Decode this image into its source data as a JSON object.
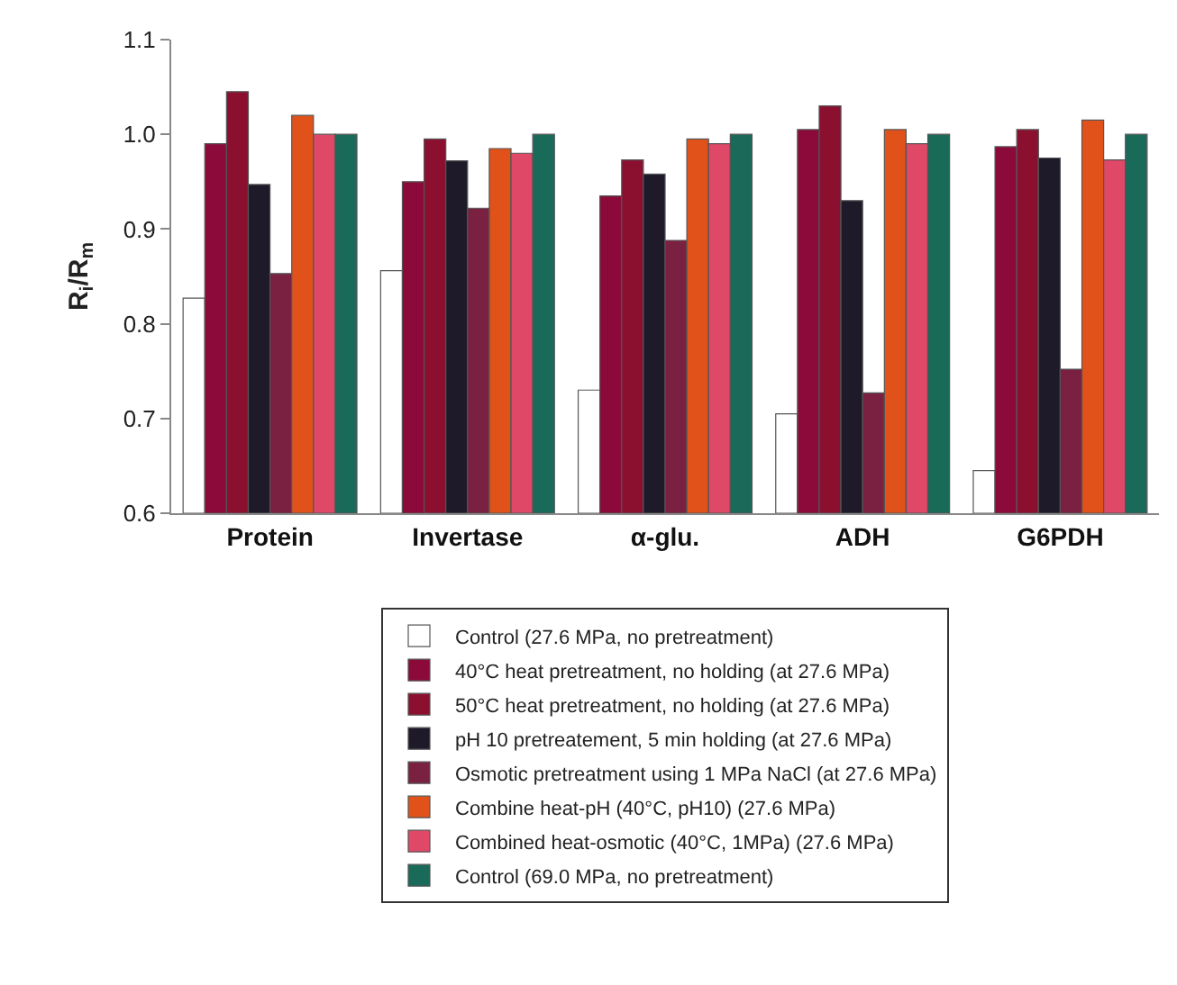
{
  "chart_data": {
    "type": "bar",
    "ylabel": "R$_{i}$/R$_{m}$",
    "categories": [
      "Protein",
      "Invertase",
      "α-glu.",
      "ADH",
      "G6PDH"
    ],
    "ylim": [
      0.6,
      1.1
    ],
    "yticks": [
      {
        "value": 0.6,
        "label": "0.6"
      },
      {
        "value": 0.7,
        "label": "0.7"
      },
      {
        "value": 0.8,
        "label": "0.8"
      },
      {
        "value": 0.9,
        "label": "0.9"
      },
      {
        "value": 1.0,
        "label": "1.0"
      },
      {
        "value": 1.1,
        "label": "1.1"
      }
    ],
    "legend": "bottom",
    "series": [
      {
        "name": "Control (27.6 MPa, no pretreatment)",
        "color": "#ffffff",
        "values": [
          0.827,
          0.856,
          0.73,
          0.705,
          0.645
        ]
      },
      {
        "name": "40°C heat pretreatment, no holding (at 27.6 MPa)",
        "color": "#8b0a3a",
        "values": [
          0.99,
          0.95,
          0.935,
          1.005,
          0.987
        ]
      },
      {
        "name": "50°C heat pretreatment, no holding (at 27.6 MPa)",
        "color": "#8b1030",
        "values": [
          1.045,
          0.995,
          0.973,
          1.03,
          1.005
        ]
      },
      {
        "name": "pH 10 pretreatement, 5 min holding (at 27.6 MPa)",
        "color": "#1e1a2a",
        "values": [
          0.947,
          0.972,
          0.958,
          0.93,
          0.975
        ]
      },
      {
        "name": "Osmotic pretreatment using 1 MPa NaCl (at 27.6 MPa)",
        "color": "#7a2040",
        "values": [
          0.853,
          0.922,
          0.888,
          0.727,
          0.752
        ]
      },
      {
        "name": "Combine heat-pH (40°C, pH10) (27.6 MPa)",
        "color": "#e0521a",
        "values": [
          1.02,
          0.985,
          0.995,
          1.005,
          1.015
        ]
      },
      {
        "name": "Combined heat-osmotic (40°C, 1MPa) (27.6 MPa)",
        "color": "#e04868",
        "values": [
          1.0,
          0.98,
          0.99,
          0.99,
          0.973
        ]
      },
      {
        "name": "Control (69.0 MPa, no pretreatment)",
        "color": "#1a6a5a",
        "values": [
          1.0,
          1.0,
          1.0,
          1.0,
          1.0
        ]
      }
    ]
  }
}
